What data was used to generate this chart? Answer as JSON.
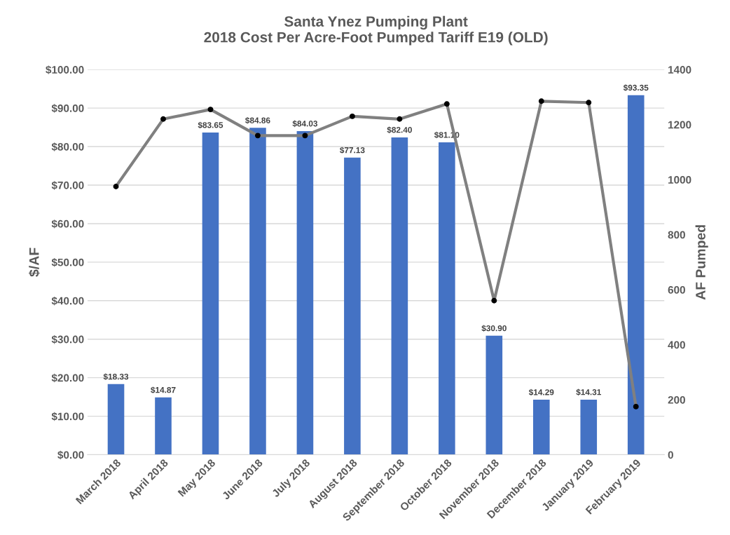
{
  "chart_data": {
    "type": "bar",
    "title": "Santa Ynez Pumping Plant\n2018 Cost Per Acre-Foot Pumped Tariff E19 (OLD)",
    "ylabel": "$/AF",
    "y2label": "AF Pumped",
    "categories": [
      "March 2018",
      "April 2018",
      "May 2018",
      "June 2018",
      "July 2018",
      "August 2018",
      "September 2018",
      "October 2018",
      "November 2018",
      "December 2018",
      "January 2019",
      "February 2019"
    ],
    "series": [
      {
        "color": "#4472c4",
        "values": [
          18.33,
          14.87,
          83.65,
          84.86,
          84.03,
          77.13,
          82.4,
          81.1,
          30.9,
          14.29,
          14.31,
          93.35
        ],
        "value_labels": [
          "$18.33",
          "$14.87",
          "$83.65",
          "$84.86",
          "$84.03",
          "$77.13",
          "$82.40",
          "$81.10",
          "$30.90",
          "$14.29",
          "$14.31",
          "$93.35"
        ]
      },
      {
        "type": "line",
        "axis": "y2",
        "color": "#808080",
        "colors": [
          "#000000",
          "#000000",
          "#000000",
          "#000000",
          "#000000",
          "#000000",
          "#000000",
          "#000000",
          "#000000",
          "#000000",
          "#000000",
          "#000000"
        ],
        "marker": "circle",
        "line_style": "solid",
        "values": [
          975,
          1220,
          1255,
          1160,
          1160,
          1230,
          1220,
          1275,
          560,
          1285,
          1280,
          175
        ]
      }
    ],
    "ylim": [
      0,
      100
    ],
    "yticks": [
      {
        "value": 0,
        "label": "$0.00"
      },
      {
        "value": 10,
        "label": "$10.00"
      },
      {
        "value": 20,
        "label": "$20.00"
      },
      {
        "value": 30,
        "label": "$30.00"
      },
      {
        "value": 40,
        "label": "$40.00"
      },
      {
        "value": 50,
        "label": "$50.00"
      },
      {
        "value": 60,
        "label": "$60.00"
      },
      {
        "value": 70,
        "label": "$70.00"
      },
      {
        "value": 80,
        "label": "$80.00"
      },
      {
        "value": 90,
        "label": "$90.00"
      },
      {
        "value": 100,
        "label": "$100.00"
      }
    ],
    "y2lim": [
      0,
      1400
    ],
    "y2ticks": [
      0,
      200,
      400,
      600,
      800,
      1000,
      1200,
      1400
    ],
    "grid": "y",
    "legend": false
  }
}
